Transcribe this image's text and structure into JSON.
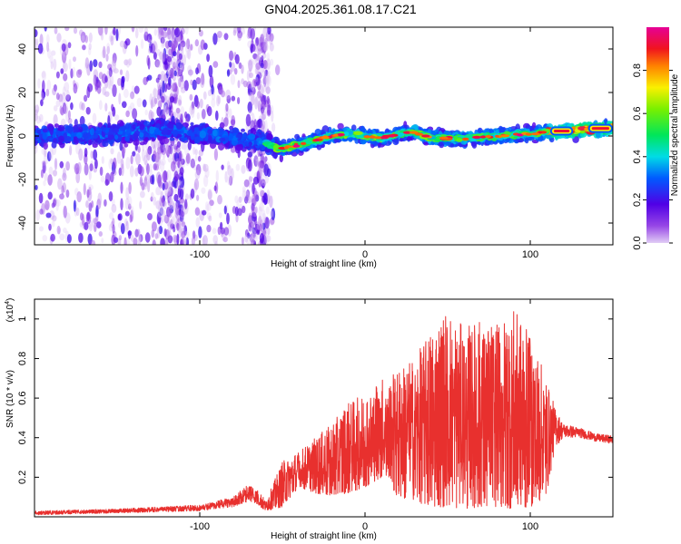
{
  "title": "GN04.2025.361.08.17.C21",
  "colors": {
    "line": "#e8302e",
    "axis": "#000000"
  },
  "chart_data": [
    {
      "type": "heatmap",
      "name": "spectrogram",
      "xlabel": "Height of straight line (km)",
      "ylabel": "Frequency (Hz)",
      "xlim": [
        -200,
        150
      ],
      "ylim": [
        -50,
        50
      ],
      "xticks": [
        -100,
        0,
        100
      ],
      "yticks": [
        -40,
        -20,
        0,
        20,
        40
      ],
      "ridge": {
        "x": [
          -200,
          -150,
          -120,
          -100,
          -80,
          -60,
          -52,
          -45,
          -40,
          -30,
          -20,
          -10,
          0,
          10,
          20,
          30,
          40,
          60,
          80,
          100,
          110,
          120,
          130,
          140,
          150
        ],
        "frequency": [
          0,
          1,
          3,
          1,
          -1,
          -3,
          -6,
          -5,
          -4,
          -2,
          0,
          1,
          0,
          -1,
          1,
          2,
          -1,
          -1,
          0,
          1,
          2,
          2,
          3,
          3,
          4
        ]
      },
      "colorbar": {
        "label": "Normalized spectral amplitude",
        "range": [
          0,
          1
        ],
        "ticks": [
          0.0,
          0.2,
          0.4,
          0.6,
          0.8
        ]
      }
    },
    {
      "type": "line",
      "name": "snr",
      "xlabel": "Height of straight line (km)",
      "ylabel": "SNR (10 * v/v)",
      "yscale_label": "(x10",
      "yscale_exp": "4",
      "yscale_close": ")",
      "xlim": [
        -200,
        150
      ],
      "ylim": [
        0,
        1.1
      ],
      "xticks": [
        -100,
        0,
        100
      ],
      "yticks": [
        0.2,
        0.4,
        0.6,
        0.8,
        1.0
      ],
      "envelope": {
        "x": [
          -200,
          -150,
          -100,
          -80,
          -70,
          -65,
          -60,
          -50,
          -40,
          -30,
          -20,
          -10,
          0,
          10,
          20,
          30,
          40,
          50,
          60,
          70,
          80,
          90,
          100,
          110,
          115,
          120,
          130,
          140,
          150
        ],
        "low": [
          0.01,
          0.02,
          0.03,
          0.05,
          0.08,
          0.06,
          0.03,
          0.05,
          0.15,
          0.12,
          0.1,
          0.12,
          0.15,
          0.2,
          0.1,
          0.08,
          0.05,
          0.05,
          0.04,
          0.05,
          0.05,
          0.04,
          0.05,
          0.1,
          0.35,
          0.4,
          0.4,
          0.38,
          0.37
        ],
        "high": [
          0.03,
          0.04,
          0.06,
          0.1,
          0.17,
          0.14,
          0.08,
          0.28,
          0.33,
          0.4,
          0.47,
          0.58,
          0.62,
          0.7,
          0.75,
          0.8,
          0.95,
          1.05,
          0.96,
          1.0,
          0.97,
          1.05,
          0.92,
          0.7,
          0.55,
          0.47,
          0.45,
          0.42,
          0.41
        ]
      }
    }
  ]
}
